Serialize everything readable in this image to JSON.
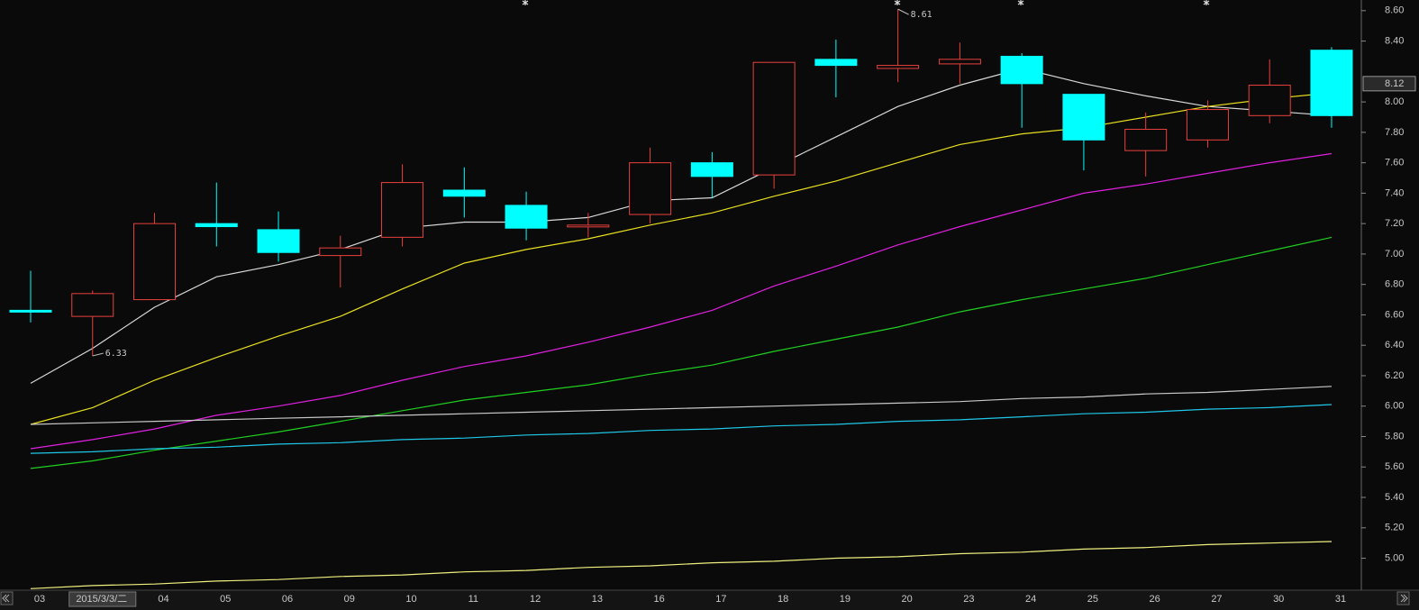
{
  "chart_data": {
    "type": "candlestick",
    "categories": [
      "03",
      "2015/3/3/二",
      "04",
      "05",
      "06",
      "09",
      "10",
      "11",
      "12",
      "13",
      "16",
      "17",
      "18",
      "19",
      "20",
      "23",
      "24",
      "25",
      "26",
      "27",
      "30",
      "31"
    ],
    "candles": {
      "open": [
        6.63,
        6.59,
        6.7,
        7.2,
        7.16,
        6.99,
        7.11,
        7.42,
        7.32,
        7.18,
        7.26,
        7.6,
        7.52,
        8.28,
        8.22,
        8.25,
        8.3,
        8.05,
        7.68,
        7.75,
        7.91,
        8.34
      ],
      "high": [
        6.89,
        6.76,
        7.27,
        7.47,
        7.28,
        7.12,
        7.59,
        7.57,
        7.41,
        7.27,
        7.7,
        7.67,
        8.26,
        8.41,
        8.61,
        8.39,
        8.32,
        8.05,
        7.93,
        8.01,
        8.28,
        8.36
      ],
      "low": [
        6.55,
        6.33,
        6.7,
        7.05,
        6.95,
        6.78,
        7.05,
        7.24,
        7.09,
        7.11,
        7.2,
        7.37,
        7.43,
        8.03,
        8.13,
        8.12,
        7.83,
        7.55,
        7.51,
        7.7,
        7.86,
        7.83
      ],
      "close": [
        6.62,
        6.74,
        7.2,
        7.18,
        7.01,
        7.04,
        7.47,
        7.38,
        7.17,
        7.19,
        7.6,
        7.51,
        8.26,
        8.24,
        8.24,
        8.28,
        8.12,
        7.75,
        7.82,
        7.95,
        8.11,
        7.91
      ]
    },
    "up_color": "#e8413c",
    "down_color": "#00ffff",
    "series": [
      {
        "color": "#d8d8d8",
        "values": [
          6.15,
          6.38,
          6.65,
          6.85,
          6.93,
          7.03,
          7.17,
          7.21,
          7.21,
          7.24,
          7.35,
          7.37,
          7.57,
          7.77,
          7.97,
          8.11,
          8.22,
          8.12,
          8.04,
          7.97,
          7.94,
          7.91
        ]
      },
      {
        "color": "#e8e020",
        "values": [
          5.88,
          5.99,
          6.17,
          6.32,
          6.46,
          6.59,
          6.77,
          6.94,
          7.03,
          7.1,
          7.19,
          7.27,
          7.38,
          7.48,
          7.6,
          7.72,
          7.79,
          7.83,
          7.9,
          7.97,
          8.02,
          8.06
        ]
      },
      {
        "color": "#e020e0",
        "values": [
          5.72,
          5.78,
          5.85,
          5.94,
          6.0,
          6.07,
          6.17,
          6.26,
          6.33,
          6.42,
          6.52,
          6.63,
          6.79,
          6.92,
          7.06,
          7.18,
          7.29,
          7.4,
          7.46,
          7.53,
          7.6,
          7.66
        ]
      },
      {
        "color": "#20d020",
        "values": [
          5.59,
          5.64,
          5.71,
          5.77,
          5.83,
          5.9,
          5.97,
          6.04,
          6.09,
          6.14,
          6.21,
          6.27,
          6.36,
          6.44,
          6.52,
          6.62,
          6.7,
          6.77,
          6.84,
          6.93,
          7.02,
          7.11
        ]
      },
      {
        "color": "#c8c8c8",
        "values": [
          5.88,
          5.89,
          5.9,
          5.91,
          5.92,
          5.93,
          5.94,
          5.95,
          5.96,
          5.97,
          5.98,
          5.99,
          6.0,
          6.01,
          6.02,
          6.03,
          6.05,
          6.06,
          6.08,
          6.09,
          6.11,
          6.13
        ]
      },
      {
        "color": "#20c8e8",
        "values": [
          5.69,
          5.7,
          5.72,
          5.73,
          5.75,
          5.76,
          5.78,
          5.79,
          5.81,
          5.82,
          5.84,
          5.85,
          5.87,
          5.88,
          5.9,
          5.91,
          5.93,
          5.95,
          5.96,
          5.98,
          5.99,
          6.01
        ]
      },
      {
        "color": "#f0f080",
        "values": [
          4.8,
          4.82,
          4.83,
          4.85,
          4.86,
          4.88,
          4.89,
          4.91,
          4.92,
          4.94,
          4.95,
          4.97,
          4.98,
          5.0,
          5.01,
          5.03,
          5.04,
          5.06,
          5.07,
          5.09,
          5.1,
          5.11
        ]
      }
    ],
    "current_price": 8.12,
    "ylim": [
      4.79,
      8.67
    ],
    "yticks": [
      {
        "value": 5,
        "label": "5.00"
      },
      {
        "value": 5.2,
        "label": "5.20"
      },
      {
        "value": 5.4,
        "label": "5.40"
      },
      {
        "value": 5.6,
        "label": "5.60"
      },
      {
        "value": 5.8,
        "label": "5.80"
      },
      {
        "value": 6,
        "label": "6.00"
      },
      {
        "value": 6.2,
        "label": "6.20"
      },
      {
        "value": 6.4,
        "label": "6.40"
      },
      {
        "value": 6.6,
        "label": "6.60"
      },
      {
        "value": 6.8,
        "label": "6.80"
      },
      {
        "value": 7,
        "label": "7.00"
      },
      {
        "value": 7.2,
        "label": "7.20"
      },
      {
        "value": 7.4,
        "label": "7.40"
      },
      {
        "value": 7.6,
        "label": "7.60"
      },
      {
        "value": 7.8,
        "label": "7.80"
      },
      {
        "value": 8,
        "label": "8.00"
      },
      {
        "value": 8.4,
        "label": "8.40"
      },
      {
        "value": 8.6,
        "label": "8.60"
      }
    ]
  }
}
